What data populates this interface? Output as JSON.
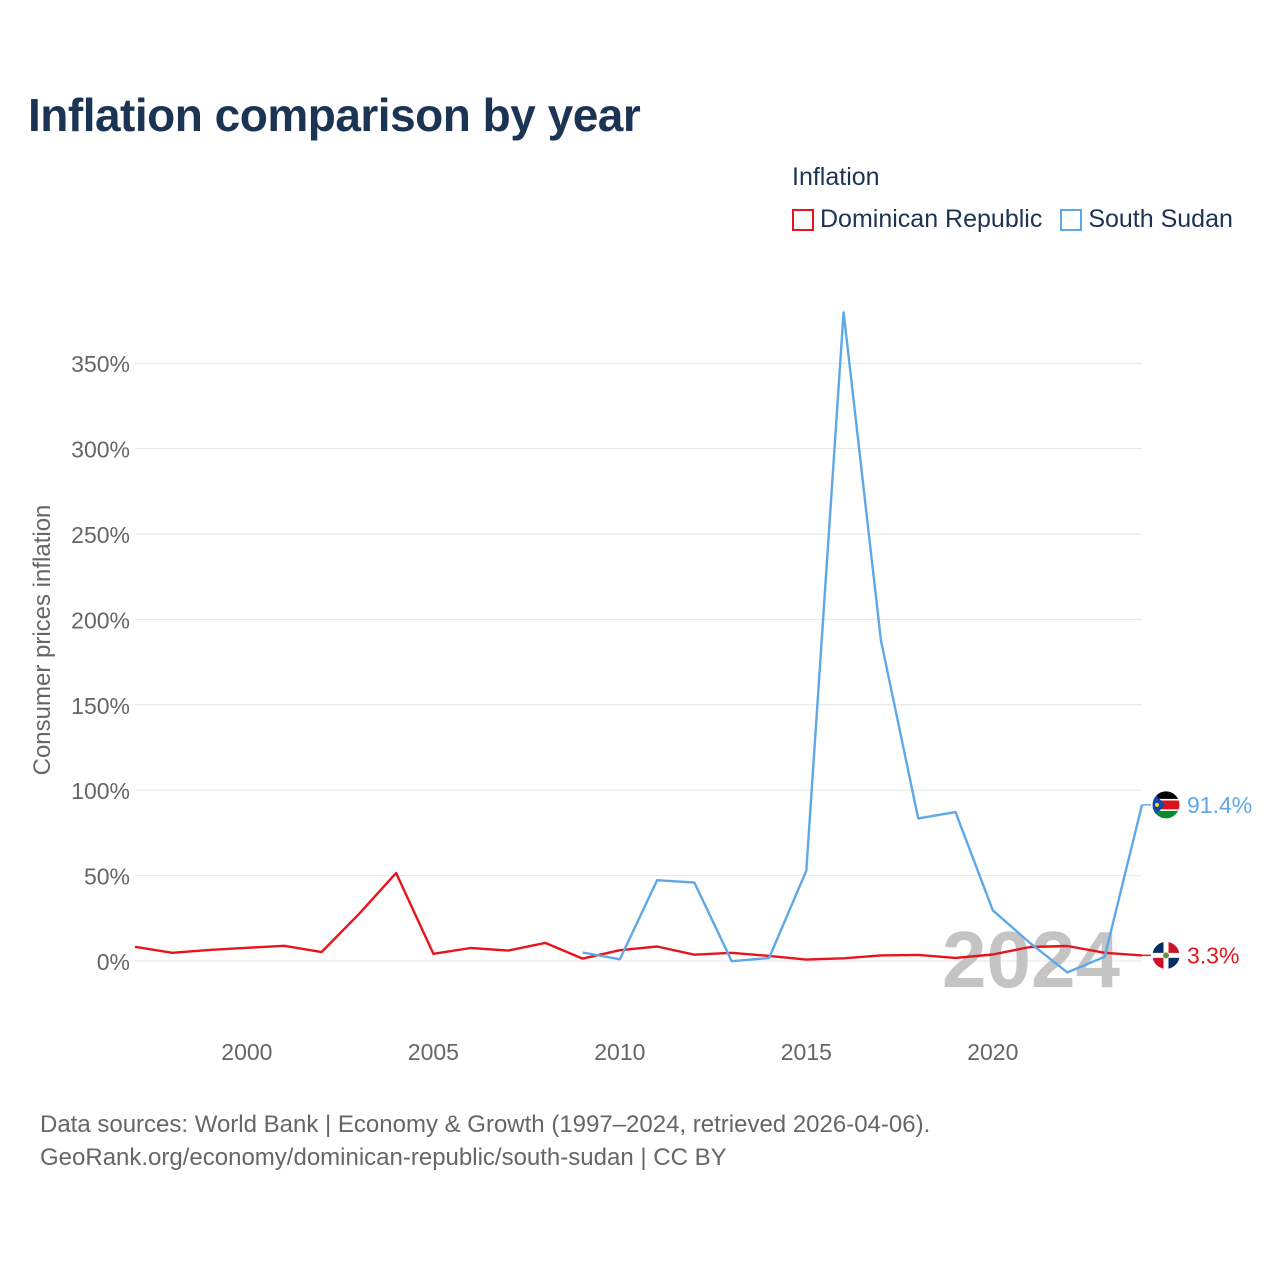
{
  "title": "Inflation comparison by year",
  "legend": {
    "title": "Inflation",
    "items": [
      {
        "label": "Dominican Republic",
        "color": "#e8141b"
      },
      {
        "label": "South Sudan",
        "color": "#5fa8e8"
      }
    ]
  },
  "chart_data": {
    "type": "line",
    "title": "Inflation comparison by year",
    "xlabel": "",
    "ylabel": "Consumer prices inflation",
    "xlim": [
      1997,
      2024
    ],
    "ylim": [
      -30,
      380
    ],
    "y_ticks": [
      0,
      50,
      100,
      150,
      200,
      250,
      300,
      350
    ],
    "y_tick_labels": [
      "0%",
      "50%",
      "100%",
      "150%",
      "200%",
      "250%",
      "300%",
      "350%"
    ],
    "x_ticks": [
      2000,
      2005,
      2010,
      2015,
      2020
    ],
    "x_tick_labels": [
      "2000",
      "2005",
      "2010",
      "2015",
      "2020"
    ],
    "grid": true,
    "legend_position": "top-right",
    "watermark": "2024",
    "series": [
      {
        "name": "Dominican Republic",
        "color": "#e8141b",
        "end_label": "3.3%",
        "x": [
          1997,
          1998,
          1999,
          2000,
          2001,
          2002,
          2003,
          2004,
          2005,
          2006,
          2007,
          2008,
          2009,
          2010,
          2011,
          2012,
          2013,
          2014,
          2015,
          2016,
          2017,
          2018,
          2019,
          2020,
          2021,
          2022,
          2023,
          2024
        ],
        "y": [
          8.3,
          4.8,
          6.5,
          7.7,
          8.9,
          5.2,
          27.4,
          51.5,
          4.2,
          7.6,
          6.1,
          10.6,
          1.4,
          6.3,
          8.5,
          3.7,
          4.8,
          3.0,
          0.8,
          1.6,
          3.3,
          3.6,
          1.8,
          3.8,
          8.2,
          8.8,
          4.8,
          3.3
        ]
      },
      {
        "name": "South Sudan",
        "color": "#5fa8e8",
        "end_label": "91.4%",
        "x": [
          2009,
          2010,
          2011,
          2012,
          2013,
          2014,
          2015,
          2016,
          2017,
          2018,
          2019,
          2020,
          2021,
          2022,
          2023,
          2024
        ],
        "y": [
          5.0,
          1.0,
          47.3,
          45.9,
          -0.1,
          1.7,
          52.8,
          379.8,
          187.9,
          83.5,
          87.2,
          29.7,
          10.5,
          -6.7,
          2.5,
          91.4
        ]
      }
    ]
  },
  "source": {
    "line1": "Data sources: World Bank | Economy & Growth (1997–2024, retrieved 2026-04-06).",
    "line2": "GeoRank.org/economy/dominican-republic/south-sudan | CC BY"
  }
}
